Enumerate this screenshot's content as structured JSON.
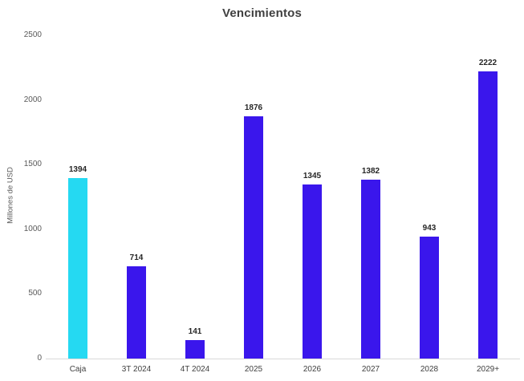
{
  "chart_data": {
    "type": "bar",
    "title": "Vencimientos",
    "categories": [
      "Caja",
      "3T 2024",
      "4T 2024",
      "2025",
      "2026",
      "2027",
      "2028",
      "2029+"
    ],
    "values": [
      1394,
      714,
      141,
      1876,
      1345,
      1382,
      943,
      2222
    ],
    "data_labels": [
      1394,
      714,
      141,
      1876,
      1345,
      1382,
      943,
      2222
    ],
    "bar_colors": [
      "#25d9f2",
      "#3a16ec",
      "#3a16ec",
      "#3a16ec",
      "#3a16ec",
      "#3a16ec",
      "#3a16ec",
      "#3a16ec"
    ],
    "xlabel": "",
    "ylabel": "Millones de USD",
    "ylim": [
      0,
      2500
    ],
    "yticks": [
      0,
      500,
      1000,
      1500,
      2000,
      2500
    ],
    "grid": false,
    "legend": false,
    "legend_position": "none"
  },
  "colors": {
    "bar_accent_cyan": "#25d9f2",
    "bar_accent_blue": "#3a16ec",
    "title_text": "#404040",
    "axis_tick_text": "#595959",
    "category_text": "#404040",
    "value_label_text": "#262626",
    "axis_line": "#d9d9d9",
    "background": "#ffffff"
  }
}
